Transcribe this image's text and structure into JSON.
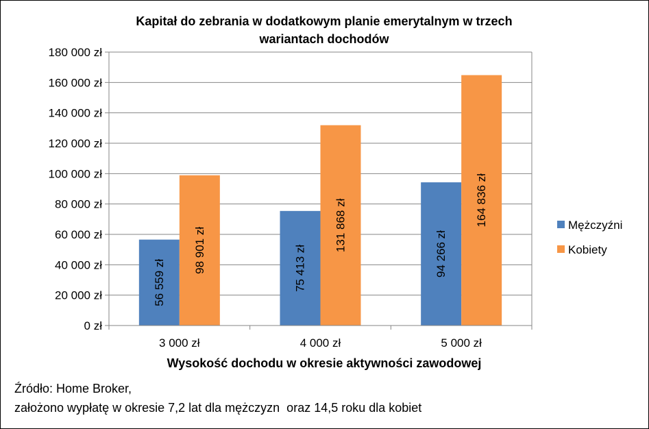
{
  "chart_data": {
    "type": "bar",
    "title_lines": [
      "Kapitał do zebrania w dodatkowym planie emerytalnym w trzech",
      "wariantach dochodów"
    ],
    "xlabel": "Wysokość dochodu w okresie aktywności zawodowej",
    "ylabel": "",
    "categories": [
      "3 000 zł",
      "4 000 zł",
      "5 000 zł"
    ],
    "series": [
      {
        "name": "Mężczyźni",
        "color": "#4F81BD",
        "values": [
          56559,
          75413,
          94266
        ],
        "labels": [
          "56 559 zł",
          "75 413 zł",
          "94 266 zł"
        ]
      },
      {
        "name": "Kobiety",
        "color": "#F79646",
        "values": [
          98901,
          131868,
          164836
        ],
        "labels": [
          "98 901 zł",
          "131 868 zł",
          "164 836 zł"
        ]
      }
    ],
    "ylim": [
      0,
      180000
    ],
    "yticks": [
      0,
      20000,
      40000,
      60000,
      80000,
      100000,
      120000,
      140000,
      160000,
      180000
    ],
    "ytick_labels": [
      "0 zł",
      "20 000 zł",
      "40 000 zł",
      "60 000 zł",
      "80 000 zł",
      "100 000 zł",
      "120 000 zł",
      "140 000 zł",
      "160 000 zł",
      "180 000 zł"
    ],
    "grid": true,
    "legend_position": "right"
  },
  "source": {
    "line1": "Źródło: Home Broker,",
    "line2": "założono wypłatę w okresie 7,2 lat dla mężczyzn  oraz 14,5 roku dla kobiet"
  }
}
